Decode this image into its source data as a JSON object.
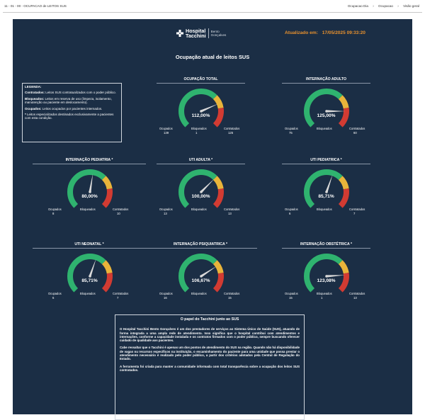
{
  "topbar": {
    "breadcrumb": "11 - 01 - 00 - OCUPACAO de LEITOS SUS",
    "actions": [
      "Ocupacao Dia",
      "Ocupacao",
      "Visão geral"
    ]
  },
  "header": {
    "brand_line1": "Hospital",
    "brand_line2": "Tacchini",
    "brand_sub1": "Bento",
    "brand_sub2": "Gonçalves",
    "updated_label": "Atualizado em:",
    "updated_value": "17/05/2025 09:33:20"
  },
  "page_title": "Ocupação atual de leitos SUS",
  "legend": {
    "heading": "LEGENDA:",
    "items": [
      {
        "term": "Contratados:",
        "text": "Leitos SUS contratualizados com o poder público."
      },
      {
        "term": "Bloqueados:",
        "text": "Leitos em reserva de uso (limpeza, isolamento, manutenção ou paciente em deslocamento)."
      },
      {
        "term": "Ocupados:",
        "text": "Leitos ocupados por pacientes internados."
      },
      {
        "term": "*",
        "text": "Leitos especializados destinados exclusivamente a pacientes com esta condição."
      }
    ]
  },
  "labels": {
    "occupied": "Ocupados",
    "blocked": "Bloqueados",
    "contracted": "Contratados"
  },
  "gauges": [
    {
      "title": "OCUPAÇÃO TOTAL",
      "pct_text": "112,00%",
      "pct": 112.0,
      "occupied": "139",
      "blocked": "1",
      "contracted": "125"
    },
    {
      "title": "INTERNAÇÃO ADULTO",
      "pct_text": "125,00%",
      "pct": 125.0,
      "occupied": "75",
      "blocked": "",
      "contracted": "60"
    },
    {
      "title": "INTERNAÇÃO PEDIATRIA *",
      "pct_text": "80,00%",
      "pct": 80.0,
      "occupied": "8",
      "blocked": "",
      "contracted": "10"
    },
    {
      "title": "UTI ADULTA *",
      "pct_text": "100,00%",
      "pct": 100.0,
      "occupied": "13",
      "blocked": "",
      "contracted": "13"
    },
    {
      "title": "UTI PEDIATRICA *",
      "pct_text": "85,71%",
      "pct": 85.71,
      "occupied": "6",
      "blocked": "",
      "contracted": "7"
    },
    {
      "title": "UTI NEONATAL *",
      "pct_text": "85,71%",
      "pct": 85.71,
      "occupied": "6",
      "blocked": "",
      "contracted": "7"
    },
    {
      "title": "INTERNAÇÃO PSIQUIATRICA *",
      "pct_text": "106,67%",
      "pct": 106.67,
      "occupied": "16",
      "blocked": "",
      "contracted": "15"
    },
    {
      "title": "INTERNAÇÃO OBSTÉTRICA *",
      "pct_text": "123,08%",
      "pct": 123.08,
      "occupied": "15",
      "blocked": "1",
      "contracted": "13"
    }
  ],
  "info": {
    "title": "O papel do Tacchini junto ao SUS",
    "paragraphs": [
      "O Hospital Tacchini Bento Gonçalves é um dos prestadores de serviços ao Sistema Único de Saúde (SUS), atuando de forma integrada a uma ampla rede de atendimento. Isso significa que o hospital contribui com atendimentos e internações, conforme a capacidade instalada e os contratos firmados com o poder público, sempre buscando oferecer cuidado de qualidade aos pacientes.",
      "Cabe ressaltar que o Tacchini é apenas um dos pontos de atendimento do SUS na região. Quando não há disponibilidade de vagas ou recursos específicos na instituição, o encaminhamento do paciente para uma unidade que possa prestar o atendimento necessário é realizado pelo poder público, a partir dos critérios adotados pela Central de Regulação do Estado.",
      "A ferramenta foi criada para manter a comunidade informada com total transparência sobre a ocupação dos leitos SUS contratados."
    ]
  },
  "colors": {
    "green": "#2fb36f",
    "yellow": "#e9b43a",
    "red": "#d23b32",
    "needle": "#d9d9d9",
    "bg": "#1b2e45"
  }
}
